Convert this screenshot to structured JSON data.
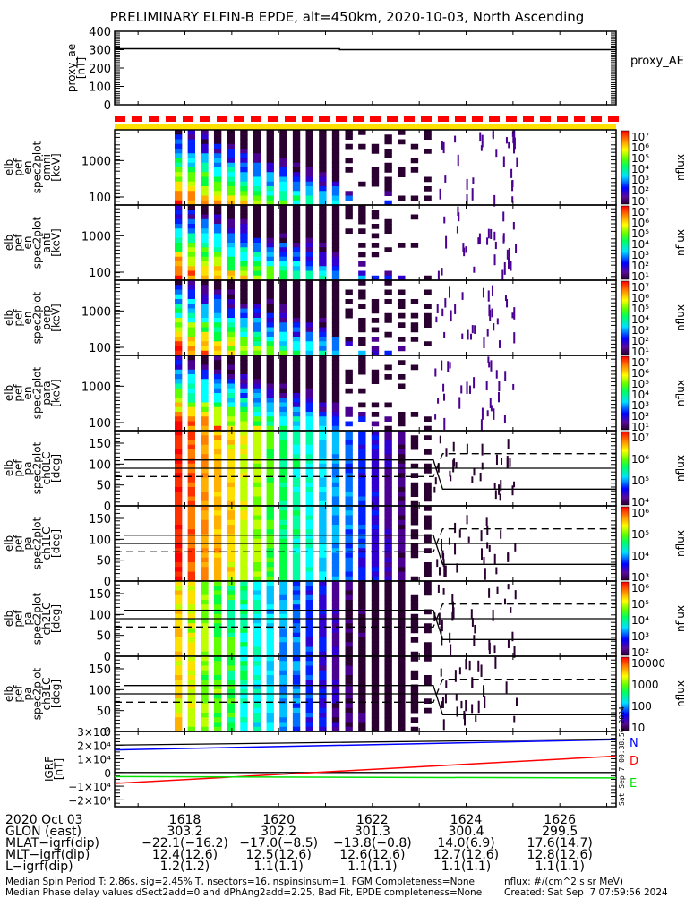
{
  "title": "PRELIMINARY ELFIN-B EPDE, alt=450km, 2020-10-03, North Ascending",
  "colors": {
    "dash_bar": "#ff0000",
    "yellow_bar": "#ffe000",
    "N": "#0000ff",
    "D": "#ff0000",
    "E": "#00e000"
  },
  "chart_data": [
    {
      "type": "line",
      "name": "proxy_ae",
      "ylabel": "proxy_ae\n[nT]",
      "legend": "proxy_AE",
      "yticks": [
        "0",
        "100",
        "200",
        "300",
        "400"
      ],
      "ylim": [
        0,
        400
      ],
      "x": [
        1616.5,
        1620.8,
        1621.3,
        1627.2
      ],
      "y": [
        305,
        305,
        300,
        298
      ]
    },
    {
      "type": "heatmap",
      "name": "en-omni",
      "ylabel": [
        "elb",
        "pef",
        "en",
        "spec2plot",
        "omni",
        "[keV]"
      ],
      "yticks": [
        "100",
        "1000"
      ],
      "ylim": [
        60,
        7000
      ],
      "colorbar": {
        "label": "nflux",
        "ticks": [
          "10⁷",
          "10⁶",
          "10⁵",
          "10⁴",
          "10³",
          "10²",
          "10¹"
        ]
      }
    },
    {
      "type": "heatmap",
      "name": "en-anti",
      "ylabel": [
        "elb",
        "pef",
        "en",
        "spec2plot",
        "anti",
        "[keV]"
      ],
      "yticks": [
        "100",
        "1000"
      ],
      "ylim": [
        60,
        7000
      ],
      "colorbar": {
        "label": "nflux",
        "ticks": [
          "10⁷",
          "10⁶",
          "10⁵",
          "10⁴",
          "10³",
          "10²",
          "10¹"
        ]
      }
    },
    {
      "type": "heatmap",
      "name": "en-perp",
      "ylabel": [
        "elb",
        "pef",
        "en",
        "spec2plot",
        "perp",
        "[keV]"
      ],
      "yticks": [
        "100",
        "1000"
      ],
      "ylim": [
        60,
        7000
      ],
      "colorbar": {
        "label": "nflux",
        "ticks": [
          "10⁷",
          "10⁶",
          "10⁵",
          "10⁴",
          "10³",
          "10²",
          "10¹"
        ]
      }
    },
    {
      "type": "heatmap",
      "name": "en-para",
      "ylabel": [
        "elb",
        "pef",
        "en",
        "spec2plot",
        "para",
        "[keV]"
      ],
      "yticks": [
        "100",
        "1000"
      ],
      "ylim": [
        60,
        7000
      ],
      "colorbar": {
        "label": "nflux",
        "ticks": [
          "10⁷",
          "10⁶",
          "10⁵",
          "10⁴",
          "10³",
          "10²",
          "10¹"
        ]
      }
    },
    {
      "type": "heatmap",
      "name": "pa-ch0LC",
      "ylabel": [
        "elb",
        "pef",
        "pa",
        "spec2plot",
        "ch0LC",
        "[deg]"
      ],
      "yticks": [
        "0",
        "50",
        "100",
        "150"
      ],
      "ylim": [
        0,
        180
      ],
      "colorbar": {
        "label": "nflux",
        "ticks": [
          "10⁷",
          "10⁶",
          "10⁵",
          "10⁴"
        ]
      }
    },
    {
      "type": "heatmap",
      "name": "pa-ch1LC",
      "ylabel": [
        "elb",
        "pef",
        "pa",
        "spec2plot",
        "ch1LC",
        "[deg]"
      ],
      "yticks": [
        "0",
        "50",
        "100",
        "150"
      ],
      "ylim": [
        0,
        180
      ],
      "colorbar": {
        "label": "nflux",
        "ticks": [
          "10⁶",
          "10⁵",
          "10⁴",
          "10³"
        ]
      }
    },
    {
      "type": "heatmap",
      "name": "pa-ch2LC",
      "ylabel": [
        "elb",
        "pef",
        "pa",
        "spec2plot",
        "ch2LC",
        "[deg]"
      ],
      "yticks": [
        "0",
        "50",
        "100",
        "150"
      ],
      "ylim": [
        0,
        180
      ],
      "colorbar": {
        "label": "nflux",
        "ticks": [
          "10⁶",
          "10⁵",
          "10⁴",
          "10³",
          "10²"
        ]
      }
    },
    {
      "type": "heatmap",
      "name": "pa-ch3LC",
      "ylabel": [
        "elb",
        "pef",
        "pa",
        "spec2plot",
        "ch3LC",
        "[deg]"
      ],
      "yticks": [
        "0",
        "50",
        "100",
        "150"
      ],
      "ylim": [
        0,
        180
      ],
      "colorbar": {
        "label": "nflux",
        "ticks": [
          "10000",
          "1000",
          "100",
          "10"
        ]
      }
    },
    {
      "type": "line",
      "name": "igrf",
      "ylabel": "IGRF\n[nT]",
      "yticks": [
        "−2×10⁴",
        "−1×10⁴",
        "0",
        "1×10⁴",
        "2×10⁴",
        "3×10⁴"
      ],
      "ylim": [
        -25000,
        30000
      ],
      "x": [
        1616.5,
        1627.2
      ],
      "series": [
        {
          "name": "N",
          "values": [
            16500,
            24000
          ]
        },
        {
          "name": "D",
          "values": [
            -8000,
            12000
          ]
        },
        {
          "name": "E",
          "values": [
            -3000,
            -4000
          ]
        }
      ],
      "timestamp": "Sat Sep  7 00:38:56 2024"
    }
  ],
  "xaxis": {
    "row_labels": [
      "2020 Oct 03",
      "GLON (east)",
      "MLAT−igrf(dip)",
      "MLT−igrf(dip)",
      "L−igrf(dip)"
    ],
    "ticks": [
      {
        "time": "1618",
        "glon": "303.2",
        "mlat": "−22.1(−16.2)",
        "mlt": "12.4(12.6)",
        "l": "1.2(1.2)"
      },
      {
        "time": "1620",
        "glon": "302.2",
        "mlat": "−17.0(−8.5)",
        "mlt": "12.5(12.6)",
        "l": "1.1(1.1)"
      },
      {
        "time": "1622",
        "glon": "301.3",
        "mlat": "−13.8(−0.8)",
        "mlt": "12.6(12.6)",
        "l": "1.1(1.1)"
      },
      {
        "time": "1624",
        "glon": "300.4",
        "mlat": "14.0(6.9)",
        "mlt": "12.7(12.6)",
        "l": "1.1(1.1)"
      },
      {
        "time": "1626",
        "glon": "299.5",
        "mlat": "17.6(14.7)",
        "mlt": "12.8(12.6)",
        "l": "1.1(1.1)"
      }
    ],
    "range": [
      1616.5,
      1627.2
    ]
  },
  "footer": {
    "line1": "Median Spin Period T: 2.86s, sig=2.45% T, nsectors=16, nspinsinsum=1, FGM Completeness=None",
    "line2": "Median Phase delay values dSect2add=0 and dPhAng2add=2.25, Bad Fit, EPDE completeness=None",
    "units": "nflux: #/(cm^2 s sr MeV)",
    "created": "Created: Sat Sep  7 07:59:56 2024"
  }
}
